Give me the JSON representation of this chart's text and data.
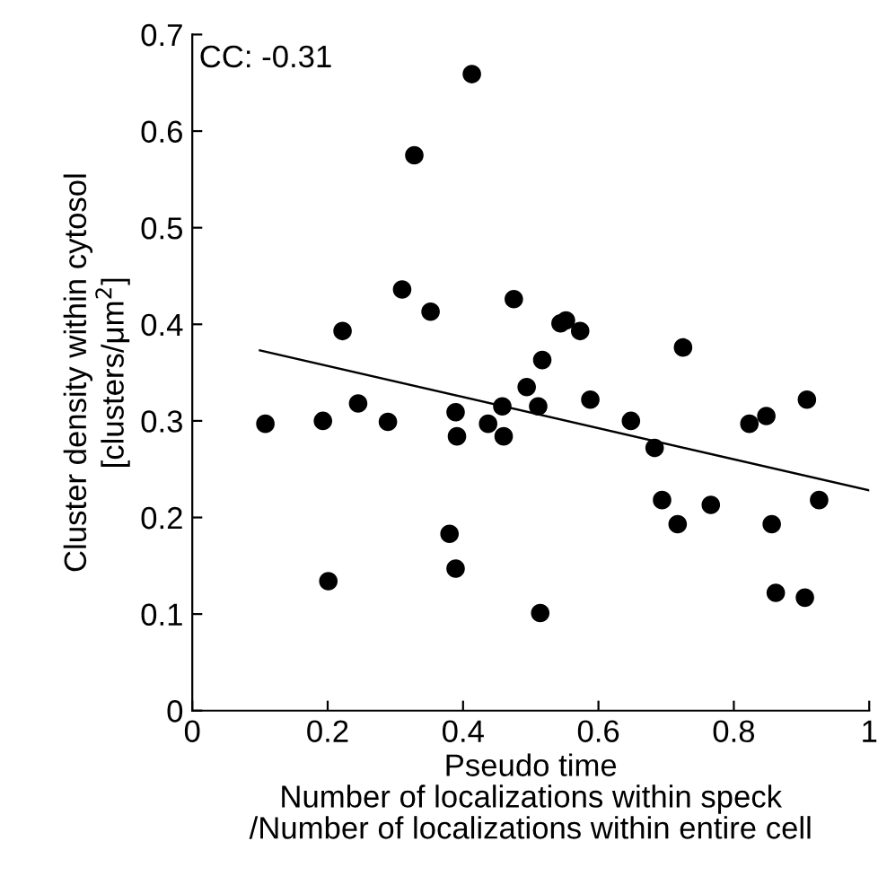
{
  "chart_data": {
    "type": "scatter",
    "xlabel": "Pseudo time\nNumber of localizations within speck\n/Number of localizations within entire cell",
    "ylabel": "Cluster density within cytosol\n[clusters/μm$^{2}$]",
    "annotations": [
      "CC: -0.31"
    ],
    "xlim": [
      0,
      1
    ],
    "xticks": [
      0,
      0.2,
      0.4,
      0.6,
      0.8,
      1
    ],
    "ylim": [
      0,
      0.7
    ],
    "yticks": [
      0,
      0.1,
      0.2,
      0.3,
      0.4,
      0.5,
      0.6,
      0.7
    ],
    "grid": false,
    "series": [
      {
        "marker": "circle",
        "color": "#000000",
        "x": [
          0.108,
          0.193,
          0.222,
          0.245,
          0.289,
          0.201,
          0.389,
          0.391,
          0.38,
          0.389,
          0.437,
          0.458,
          0.46,
          0.494,
          0.511,
          0.517,
          0.514,
          0.588,
          0.648,
          0.683,
          0.694,
          0.717,
          0.725,
          0.766,
          0.823,
          0.848,
          0.856,
          0.862,
          0.905,
          0.908,
          0.926,
          0.413,
          0.328,
          0.31,
          0.352,
          0.475,
          0.544,
          0.552,
          0.573
        ],
        "values": [
          0.297,
          0.3,
          0.393,
          0.318,
          0.299,
          0.134,
          0.309,
          0.284,
          0.183,
          0.147,
          0.297,
          0.315,
          0.284,
          0.335,
          0.315,
          0.363,
          0.101,
          0.322,
          0.3,
          0.272,
          0.218,
          0.193,
          0.376,
          0.213,
          0.297,
          0.305,
          0.193,
          0.122,
          0.117,
          0.322,
          0.218,
          0.659,
          0.575,
          0.436,
          0.413,
          0.426,
          0.401,
          0.404,
          0.393
        ]
      },
      {
        "type": "line",
        "color": "#000000",
        "line_style": "solid",
        "x": [
          0.1,
          1.0
        ],
        "values": [
          0.373,
          0.228
        ]
      }
    ]
  }
}
